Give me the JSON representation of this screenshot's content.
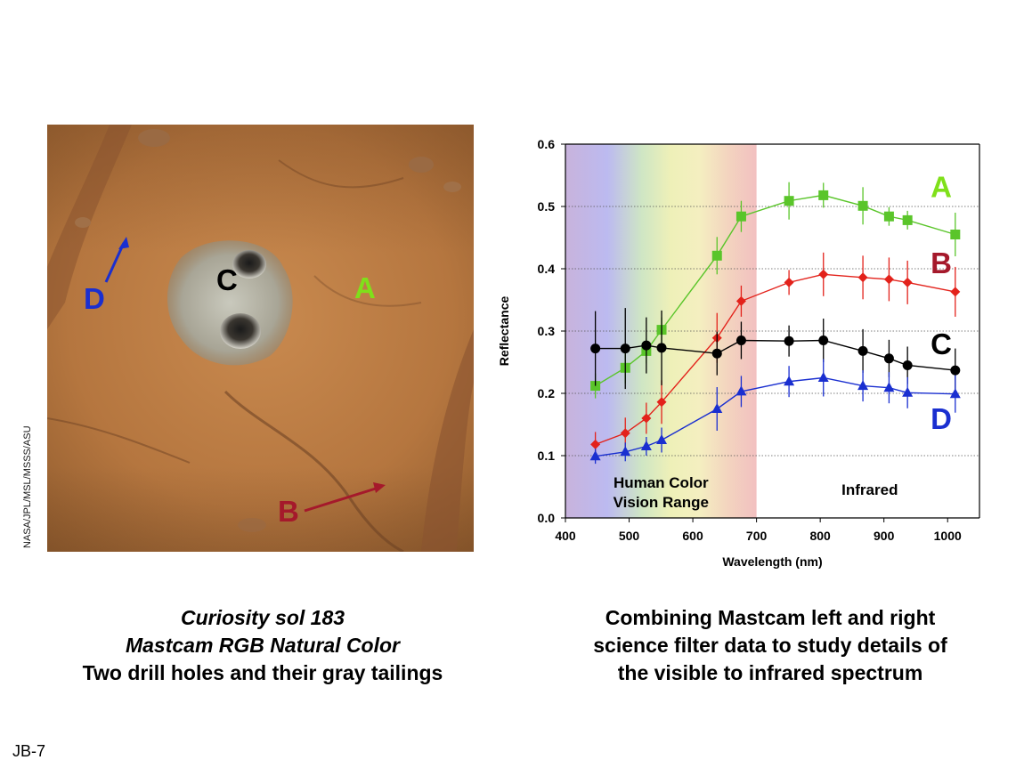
{
  "photo": {
    "labels": {
      "A": {
        "text": "A",
        "color": "#7fe01a"
      },
      "B": {
        "text": "B",
        "color": "#a5192b"
      },
      "C": {
        "text": "C",
        "color": "#000000"
      },
      "D": {
        "text": "D",
        "color": "#1a2fd0"
      }
    },
    "credit": "NASA/JPL/MSL/MSSS/ASU"
  },
  "left_caption": {
    "line1": "Curiosity sol 183",
    "line2": "Mastcam RGB Natural Color",
    "line3": "Two drill holes and their gray tailings"
  },
  "right_caption": {
    "line1": "Combining Mastcam left and right",
    "line2": "science filter data to study details of",
    "line3": "the visible to infrared spectrum"
  },
  "slide_id": "JB-7",
  "chart_data": {
    "type": "line",
    "xlabel": "Wavelength (nm)",
    "ylabel": "Reflectance",
    "xlim": [
      400,
      1050
    ],
    "ylim": [
      0.0,
      0.6
    ],
    "xticks": [
      "400",
      "500",
      "600",
      "700",
      "800",
      "900",
      "1000"
    ],
    "yticks": [
      "0.0",
      "0.1",
      "0.2",
      "0.3",
      "0.4",
      "0.5",
      "0.6"
    ],
    "grid": "horizontal dotted",
    "regions": [
      {
        "label_line1": "Human Color",
        "label_line2": "Vision Range",
        "from": 400,
        "to": 700,
        "fill": "visible-spectrum"
      },
      {
        "label_line1": "Infrared",
        "label_line2": "",
        "from": 700,
        "to": 1050,
        "fill": "white"
      }
    ],
    "x": [
      447,
      494,
      527,
      551,
      638,
      676,
      751,
      805,
      867,
      908,
      937,
      1012
    ],
    "series": [
      {
        "name": "A",
        "color": "#5ac52a",
        "marker": "square",
        "values": [
          0.212,
          0.241,
          0.268,
          0.302,
          0.421,
          0.484,
          0.509,
          0.518,
          0.501,
          0.484,
          0.478,
          0.455
        ],
        "errors": [
          0.02,
          0.025,
          0.02,
          0.02,
          0.03,
          0.025,
          0.03,
          0.02,
          0.03,
          0.015,
          0.015,
          0.035
        ]
      },
      {
        "name": "B",
        "color": "#e3221b",
        "marker": "diamond",
        "values": [
          0.118,
          0.136,
          0.16,
          0.186,
          0.289,
          0.348,
          0.378,
          0.391,
          0.386,
          0.383,
          0.378,
          0.363
        ],
        "errors": [
          0.02,
          0.025,
          0.025,
          0.035,
          0.04,
          0.025,
          0.02,
          0.035,
          0.035,
          0.035,
          0.035,
          0.04
        ]
      },
      {
        "name": "C",
        "color": "#000000",
        "marker": "circle",
        "values": [
          0.272,
          0.272,
          0.277,
          0.273,
          0.264,
          0.285,
          0.284,
          0.285,
          0.268,
          0.256,
          0.245,
          0.237
        ],
        "errors": [
          0.06,
          0.065,
          0.045,
          0.06,
          0.035,
          0.03,
          0.025,
          0.035,
          0.035,
          0.03,
          0.03,
          0.035
        ]
      },
      {
        "name": "D",
        "color": "#1a2fd0",
        "marker": "triangle",
        "values": [
          0.099,
          0.106,
          0.115,
          0.125,
          0.175,
          0.203,
          0.219,
          0.225,
          0.212,
          0.209,
          0.201,
          0.199
        ],
        "errors": [
          0.012,
          0.015,
          0.015,
          0.02,
          0.035,
          0.025,
          0.025,
          0.03,
          0.025,
          0.025,
          0.025,
          0.03
        ]
      }
    ],
    "series_label_colors": {
      "A": "#7fe01a",
      "B": "#a5192b",
      "C": "#000000",
      "D": "#1a2fd0"
    }
  }
}
